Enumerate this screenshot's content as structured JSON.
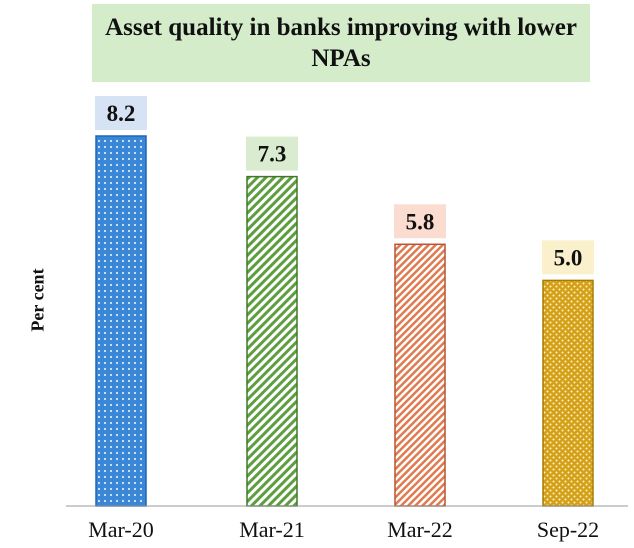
{
  "chart_data": {
    "type": "bar",
    "title": "Asset quality in banks improving with lower NPAs",
    "ylabel": "Per cent",
    "xlabel": "",
    "categories": [
      "Mar-20",
      "Mar-21",
      "Mar-22",
      "Sep-22"
    ],
    "values": [
      8.2,
      7.3,
      5.8,
      5.0
    ],
    "value_labels": [
      "8.2",
      "7.3",
      "5.8",
      "5.0"
    ],
    "ylim": [
      0,
      8.2
    ],
    "grid": false,
    "legend": "none",
    "colors": {
      "bars": [
        "#3a87d8",
        "#5f9e40",
        "#e07a50",
        "#d4a017"
      ],
      "bar_strokes": [
        "#1f66b5",
        "#3d7a26",
        "#b85530",
        "#a87c00"
      ],
      "label_backgrounds": [
        "#d6e3f5",
        "#d9ecd0",
        "#fadcd0",
        "#fbf0cc"
      ],
      "title_background": "#d5eccb",
      "axis": "#999999",
      "text": "#111111"
    }
  }
}
